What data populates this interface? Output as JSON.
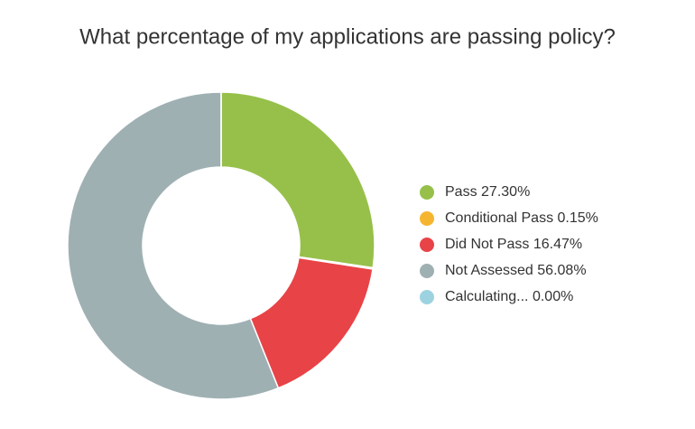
{
  "chart_data": {
    "type": "donut",
    "title": "What percentage of my applications are passing policy?",
    "categories": [
      "Pass",
      "Conditional Pass",
      "Did Not Pass",
      "Not Assessed",
      "Calculating..."
    ],
    "values": [
      27.3,
      0.15,
      16.47,
      56.08,
      0
    ],
    "value_labels": [
      "27.30%",
      "0.15%",
      "16.47%",
      "56.08%",
      "0.00%"
    ],
    "colors": [
      "#97c04a",
      "#f6b530",
      "#e84347",
      "#9fb0b3",
      "#9dd3e0"
    ]
  }
}
